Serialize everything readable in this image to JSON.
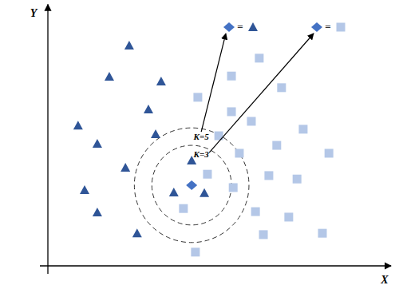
{
  "chart_data": {
    "type": "scatter",
    "x_label": "X",
    "y_label": "Y",
    "xlim": [
      0,
      100
    ],
    "ylim": [
      0,
      75
    ],
    "tick_labels": false,
    "grid": false,
    "series": [
      {
        "color": "#2f5597",
        "marker": "triangle",
        "x": [
          23.7,
          17.9,
          33.0,
          29.3,
          8.8,
          14.4,
          31.4,
          22.6,
          41.9,
          10.7,
          36.7,
          45.6,
          14.4,
          26.0
        ],
        "values": [
          64.2,
          55.1,
          53.7,
          45.6,
          40.9,
          35.6,
          38.4,
          28.6,
          30.7,
          22.1,
          21.4,
          21.2,
          15.6,
          9.5
        ]
      },
      {
        "color": "#b4c7e7",
        "marker": "square",
        "x": [
          61.6,
          53.5,
          68.1,
          43.7,
          53.5,
          59.3,
          74.4,
          49.8,
          66.7,
          55.8,
          81.9,
          46.5,
          64.4,
          72.6,
          54.0,
          39.5,
          60.5,
          70.2,
          80.0,
          62.8,
          43.0
        ],
        "values": [
          60.5,
          55.3,
          51.9,
          49.1,
          44.9,
          42.1,
          39.8,
          37.9,
          35.1,
          32.8,
          32.8,
          26.7,
          26.3,
          25.3,
          22.8,
          16.7,
          15.8,
          14.2,
          9.5,
          9.1,
          4.0
        ]
      },
      {
        "color": "#4472c4",
        "marker": "diamond",
        "x": [
          41.9
        ],
        "values": [
          23.5
        ]
      }
    ],
    "query_series": 2,
    "neighborhoods": [
      {
        "label": "K=5",
        "radius": 16.7,
        "line_style": "dashed",
        "result": "=",
        "result_series": 0
      },
      {
        "label": "K=3",
        "radius": 11.6,
        "line_style": "dashed",
        "result": "=",
        "result_series": 1
      }
    ]
  }
}
